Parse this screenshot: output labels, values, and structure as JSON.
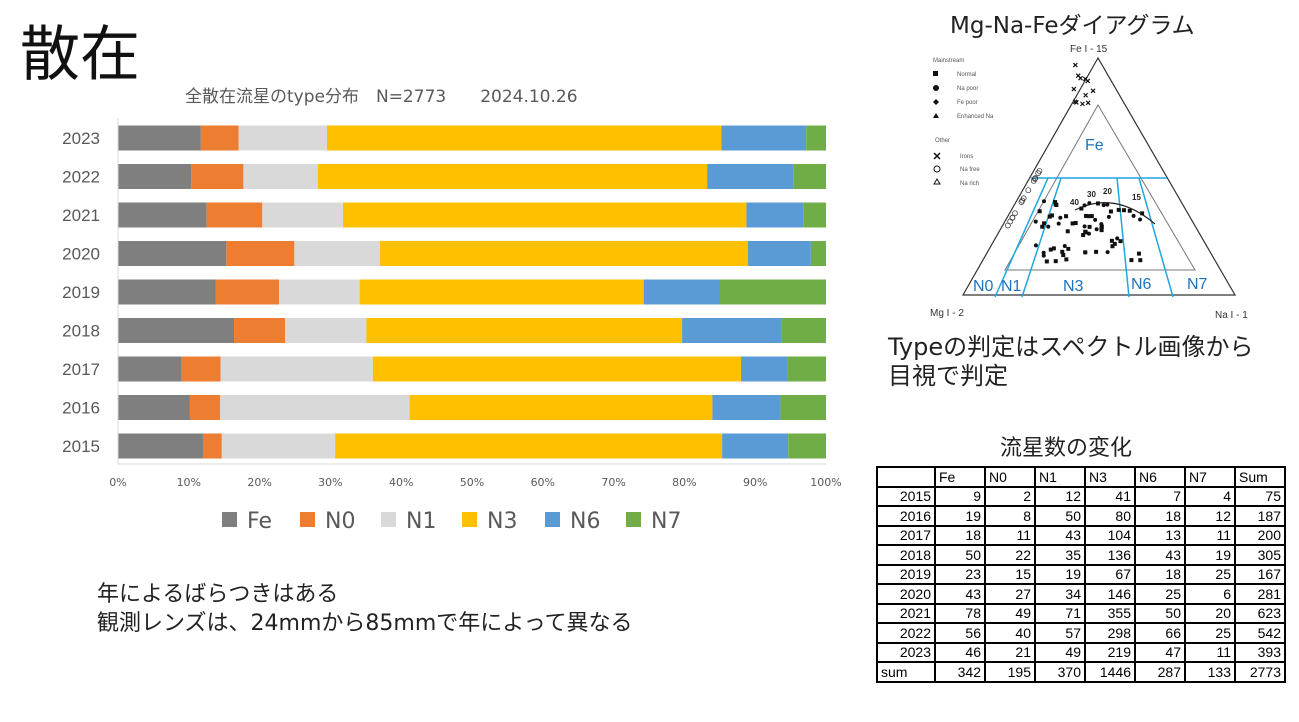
{
  "slide_title": "散在",
  "note_lines": [
    "年によるばらつきはある",
    "観測レンズは、24mmから85mmで年によって異なる"
  ],
  "diagram": {
    "title": "Mg-Na-Feダイアグラム",
    "apex_top": "Fe I - 15",
    "apex_left": "Mg I - 2",
    "apex_right": "Na I - 1",
    "legend": {
      "mainstream_title": "Mainstream",
      "mainstream": [
        "Normal",
        "Na poor",
        "Fe poor",
        "Enhanced Na"
      ],
      "other_title": "Other",
      "other": [
        "Irons",
        "Na free",
        "Na rich"
      ]
    },
    "regions": [
      "Fe",
      "N0",
      "N1",
      "N3",
      "N6",
      "N7"
    ],
    "curve_labels": [
      "40",
      "30",
      "20",
      "15"
    ]
  },
  "judgement_text": "Typeの判定はスペクトル画像から目視で判定",
  "table": {
    "title": "流星数の変化",
    "headers": [
      "",
      "Fe",
      "N0",
      "N1",
      "N3",
      "N6",
      "N7",
      "Sum"
    ],
    "rows": [
      [
        "2015",
        9,
        2,
        12,
        41,
        7,
        4,
        75
      ],
      [
        "2016",
        19,
        8,
        50,
        80,
        18,
        12,
        187
      ],
      [
        "2017",
        18,
        11,
        43,
        104,
        13,
        11,
        200
      ],
      [
        "2018",
        50,
        22,
        35,
        136,
        43,
        19,
        305
      ],
      [
        "2019",
        23,
        15,
        19,
        67,
        18,
        25,
        167
      ],
      [
        "2020",
        43,
        27,
        34,
        146,
        25,
        6,
        281
      ],
      [
        "2021",
        78,
        49,
        71,
        355,
        50,
        20,
        623
      ],
      [
        "2022",
        56,
        40,
        57,
        298,
        66,
        25,
        542
      ],
      [
        "2023",
        46,
        21,
        49,
        219,
        47,
        11,
        393
      ],
      [
        "sum",
        342,
        195,
        370,
        1446,
        287,
        133,
        2773
      ]
    ]
  },
  "chart_data": {
    "type": "bar",
    "orientation": "horizontal",
    "stacked": "percent",
    "title": "全散在流星のtype分布　N=2773　　2024.10.26",
    "categories": [
      "2023",
      "2022",
      "2021",
      "2020",
      "2019",
      "2018",
      "2017",
      "2016",
      "2015"
    ],
    "series": [
      {
        "name": "Fe",
        "color": "#7f7f7f",
        "values": [
          46,
          56,
          78,
          43,
          23,
          50,
          18,
          19,
          9
        ]
      },
      {
        "name": "N0",
        "color": "#ed7d31",
        "values": [
          21,
          40,
          49,
          27,
          15,
          22,
          11,
          8,
          2
        ]
      },
      {
        "name": "N1",
        "color": "#d9d9d9",
        "values": [
          49,
          57,
          71,
          34,
          19,
          35,
          43,
          50,
          12
        ]
      },
      {
        "name": "N3",
        "color": "#ffc000",
        "values": [
          219,
          298,
          355,
          146,
          67,
          136,
          104,
          80,
          41
        ]
      },
      {
        "name": "N6",
        "color": "#5b9bd5",
        "values": [
          47,
          66,
          50,
          25,
          18,
          43,
          13,
          18,
          7
        ]
      },
      {
        "name": "N7",
        "color": "#70ad47",
        "values": [
          11,
          25,
          20,
          6,
          25,
          19,
          11,
          12,
          4
        ]
      }
    ],
    "xticks": [
      "0%",
      "10%",
      "20%",
      "30%",
      "40%",
      "50%",
      "60%",
      "70%",
      "80%",
      "90%",
      "100%"
    ],
    "xlim": [
      0,
      100
    ],
    "legend": "bottom",
    "grid": false
  }
}
